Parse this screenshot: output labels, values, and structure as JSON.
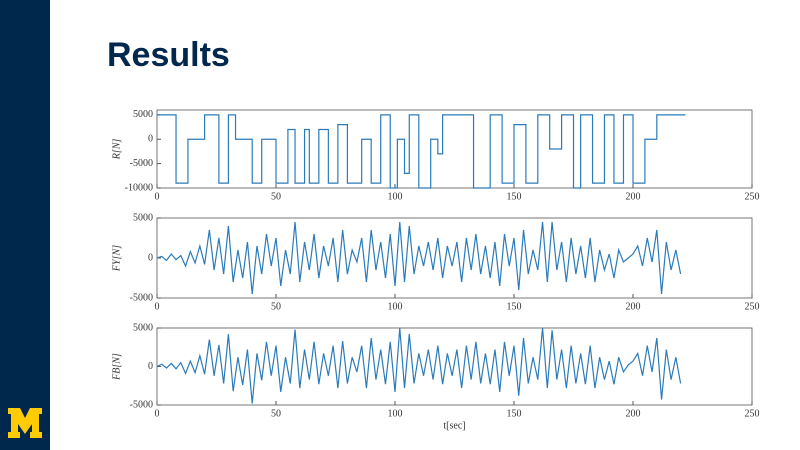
{
  "title": "Results",
  "chart_data": [
    {
      "type": "line",
      "ylabel": "R[N]",
      "color": "#2b7bba",
      "xlim": [
        0,
        250
      ],
      "xticks": [
        0,
        50,
        100,
        150,
        200,
        250
      ],
      "ylim": [
        -10000,
        6000
      ],
      "yticks": [
        -10000,
        -5000,
        0,
        5000
      ],
      "x": [
        0,
        8,
        8,
        13,
        13,
        20,
        20,
        26,
        26,
        30,
        30,
        33,
        33,
        40,
        40,
        44,
        44,
        50,
        50,
        55,
        55,
        58,
        58,
        62,
        62,
        64,
        64,
        68,
        68,
        72,
        72,
        76,
        76,
        80,
        80,
        86,
        86,
        90,
        90,
        94,
        94,
        98,
        98,
        101,
        101,
        104,
        104,
        106,
        106,
        110,
        110,
        115,
        115,
        118,
        118,
        120,
        120,
        133,
        133,
        140,
        140,
        145,
        145,
        150,
        150,
        155,
        155,
        160,
        160,
        165,
        165,
        170,
        170,
        175,
        175,
        178,
        178,
        183,
        183,
        188,
        188,
        192,
        192,
        196,
        196,
        200,
        200,
        205,
        205,
        210,
        210,
        222
      ],
      "values": [
        5000,
        5000,
        -9000,
        -9000,
        0,
        0,
        5000,
        5000,
        -9000,
        -9000,
        5000,
        5000,
        0,
        0,
        -9000,
        -9000,
        0,
        0,
        -9000,
        -9000,
        2000,
        2000,
        -9000,
        -9000,
        2000,
        2000,
        -9000,
        -9000,
        2000,
        2000,
        -9000,
        -9000,
        3000,
        3000,
        -9000,
        -9000,
        0,
        0,
        -9000,
        -9000,
        5000,
        5000,
        -10000,
        -10000,
        0,
        0,
        -7000,
        -7000,
        5000,
        5000,
        -10000,
        -10000,
        0,
        0,
        -3000,
        -3000,
        5000,
        5000,
        -10000,
        -10000,
        5000,
        5000,
        -9000,
        -9000,
        3000,
        3000,
        -9000,
        -9000,
        5000,
        5000,
        -2000,
        -2000,
        5000,
        5000,
        -10000,
        -10000,
        5000,
        5000,
        -9000,
        -9000,
        5000,
        5000,
        -9000,
        -9000,
        5000,
        5000,
        -9000,
        -9000,
        0,
        0,
        5000,
        5000
      ]
    },
    {
      "type": "line",
      "ylabel": "FY[N]",
      "color": "#2b7bba",
      "xlim": [
        0,
        250
      ],
      "xticks": [
        0,
        50,
        100,
        150,
        200,
        250
      ],
      "ylim": [
        -5000,
        5000
      ],
      "yticks": [
        -5000,
        0,
        5000
      ],
      "x": [
        0,
        2,
        4,
        6,
        8,
        10,
        12,
        14,
        16,
        18,
        20,
        22,
        24,
        26,
        28,
        30,
        32,
        34,
        36,
        38,
        40,
        42,
        44,
        46,
        48,
        50,
        52,
        54,
        56,
        58,
        60,
        62,
        64,
        66,
        68,
        70,
        72,
        74,
        76,
        78,
        80,
        82,
        84,
        86,
        88,
        90,
        92,
        94,
        96,
        98,
        100,
        102,
        104,
        106,
        108,
        110,
        112,
        114,
        116,
        118,
        120,
        122,
        124,
        126,
        128,
        130,
        132,
        134,
        136,
        138,
        140,
        142,
        144,
        146,
        148,
        150,
        152,
        154,
        156,
        158,
        160,
        162,
        164,
        166,
        168,
        170,
        172,
        174,
        176,
        178,
        180,
        182,
        184,
        186,
        188,
        190,
        192,
        194,
        196,
        198,
        200,
        202,
        204,
        206,
        208,
        210,
        212,
        214,
        216,
        218,
        220
      ],
      "values": [
        0,
        200,
        -300,
        500,
        -200,
        300,
        -1000,
        800,
        -600,
        1500,
        -800,
        3500,
        -1500,
        2500,
        -2000,
        4000,
        -3000,
        1000,
        -2500,
        2000,
        -4500,
        1500,
        -2000,
        3000,
        -1000,
        2500,
        -3500,
        1000,
        -2000,
        4500,
        -3000,
        2000,
        -1500,
        3000,
        -2500,
        1500,
        -1000,
        2500,
        -3000,
        3500,
        -2000,
        1000,
        -500,
        2500,
        -3000,
        3500,
        -1500,
        2000,
        -2500,
        3000,
        -3500,
        4500,
        -3000,
        4000,
        -2000,
        1500,
        -1000,
        2000,
        -1500,
        2500,
        -2500,
        1500,
        -1000,
        2000,
        -3000,
        2500,
        -1500,
        3000,
        -2000,
        1500,
        -2500,
        2000,
        -3500,
        3000,
        -1000,
        2500,
        -4000,
        3500,
        -2000,
        1000,
        -1500,
        4500,
        -3000,
        4500,
        -1500,
        2000,
        -3000,
        2500,
        -2000,
        1500,
        -2500,
        2500,
        -3000,
        1000,
        -1500,
        500,
        -2500,
        1000,
        -500,
        0,
        500,
        1500,
        -1000,
        2500,
        -500,
        3500,
        -4500,
        2000,
        -1500,
        1000,
        -2000
      ]
    },
    {
      "type": "line",
      "ylabel": "FB[N]",
      "xlabel": "t[sec]",
      "color": "#2b7bba",
      "xlim": [
        0,
        250
      ],
      "xticks": [
        0,
        50,
        100,
        150,
        200,
        250
      ],
      "ylim": [
        -5000,
        5000
      ],
      "yticks": [
        -5000,
        0,
        5000
      ],
      "x": [
        0,
        2,
        4,
        6,
        8,
        10,
        12,
        14,
        16,
        18,
        20,
        22,
        24,
        26,
        28,
        30,
        32,
        34,
        36,
        38,
        40,
        42,
        44,
        46,
        48,
        50,
        52,
        54,
        56,
        58,
        60,
        62,
        64,
        66,
        68,
        70,
        72,
        74,
        76,
        78,
        80,
        82,
        84,
        86,
        88,
        90,
        92,
        94,
        96,
        98,
        100,
        102,
        104,
        106,
        108,
        110,
        112,
        114,
        116,
        118,
        120,
        122,
        124,
        126,
        128,
        130,
        132,
        134,
        136,
        138,
        140,
        142,
        144,
        146,
        148,
        150,
        152,
        154,
        156,
        158,
        160,
        162,
        164,
        166,
        168,
        170,
        172,
        174,
        176,
        178,
        180,
        182,
        184,
        186,
        188,
        190,
        192,
        194,
        196,
        198,
        200,
        202,
        204,
        206,
        208,
        210,
        212,
        214,
        216,
        218,
        220
      ],
      "values": [
        0,
        300,
        -200,
        400,
        -300,
        500,
        -900,
        700,
        -800,
        1400,
        -1000,
        3500,
        -1200,
        2800,
        -2200,
        4200,
        -3200,
        1200,
        -2400,
        2200,
        -4800,
        1700,
        -1800,
        3200,
        -1200,
        2700,
        -3300,
        1200,
        -2200,
        4800,
        -2800,
        2200,
        -1700,
        3200,
        -2300,
        1700,
        -1200,
        2700,
        -2800,
        3300,
        -2200,
        1200,
        -700,
        2700,
        -2800,
        3700,
        -1700,
        2200,
        -2300,
        3200,
        -3300,
        5000,
        -2800,
        4200,
        -2200,
        1700,
        -1200,
        2200,
        -1700,
        2700,
        -2300,
        1700,
        -1200,
        2200,
        -2800,
        2700,
        -1700,
        3200,
        -2200,
        1700,
        -2300,
        2200,
        -3300,
        3200,
        -1200,
        2700,
        -3800,
        3700,
        -2200,
        1200,
        -1700,
        5000,
        -2800,
        4700,
        -1700,
        2200,
        -2800,
        2700,
        -2200,
        1700,
        -2300,
        2700,
        -2800,
        1200,
        -1700,
        700,
        -2300,
        1200,
        -700,
        200,
        700,
        1700,
        -1200,
        2700,
        -700,
        3700,
        -4300,
        2200,
        -1700,
        1200,
        -2200
      ]
    }
  ]
}
